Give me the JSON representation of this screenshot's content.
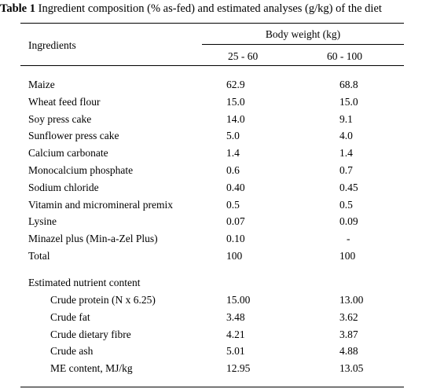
{
  "caption": {
    "label": "Table 1",
    "text": " Ingredient composition (% as-fed) and estimated analyses (g/kg) of the diet"
  },
  "header": {
    "ingredients": "Ingredients",
    "group": "Body weight (kg)",
    "col1": "25 - 60",
    "col2": "60 - 100"
  },
  "ingredients": [
    {
      "name": "Maize",
      "a": "62.9",
      "b": "68.8"
    },
    {
      "name": "Wheat feed flour",
      "a": "15.0",
      "b": "15.0"
    },
    {
      "name": "Soy press cake",
      "a": "14.0",
      "b": "9.1"
    },
    {
      "name": "Sunflower press cake",
      "a": "5.0",
      "b": "4.0"
    },
    {
      "name": "Calcium carbonate",
      "a": "1.4",
      "b": "1.4"
    },
    {
      "name": "Monocalcium phosphate",
      "a": "0.6",
      "b": "0.7"
    },
    {
      "name": "Sodium chloride",
      "a": "0.40",
      "b": "0.45"
    },
    {
      "name": "Vitamin and micromineral premix",
      "a": "0.5",
      "b": "0.5"
    },
    {
      "name": "Lysine",
      "a": "0.07",
      "b": "0.09"
    },
    {
      "name": "Minazel plus (Min-a-Zel Plus)",
      "a": "0.10",
      "b": "-"
    },
    {
      "name": "Total",
      "a": "100",
      "b": "100"
    }
  ],
  "nutrients": {
    "heading": "Estimated nutrient content",
    "rows": [
      {
        "name": "Crude protein (N x 6.25)",
        "a": "15.00",
        "b": "13.00"
      },
      {
        "name": "Crude fat",
        "a": "3.48",
        "b": "3.62"
      },
      {
        "name": "Crude dietary fibre",
        "a": "4.21",
        "b": "3.87"
      },
      {
        "name": "Crude ash",
        "a": "5.01",
        "b": "4.88"
      },
      {
        "name": "ME content, MJ/kg",
        "a": "12.95",
        "b": "13.05"
      }
    ]
  }
}
